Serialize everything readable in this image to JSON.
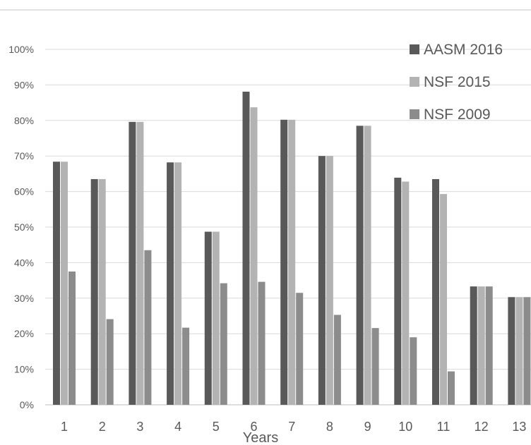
{
  "chart_data": {
    "type": "bar",
    "title": "",
    "xlabel": "Years",
    "ylabel": "",
    "ylim": [
      0,
      100
    ],
    "y_ticks": [
      "0%",
      "10%",
      "20%",
      "30%",
      "40%",
      "50%",
      "60%",
      "70%",
      "80%",
      "90%",
      "100%"
    ],
    "categories": [
      "1",
      "2",
      "3",
      "4",
      "5",
      "6",
      "7",
      "8",
      "9",
      "10",
      "11",
      "12",
      "13"
    ],
    "grid": true,
    "legend_position": "top-right",
    "series": [
      {
        "name": "AASM 2016",
        "color": "#595959",
        "values": [
          68.4,
          63.5,
          79.6,
          68.2,
          48.7,
          88.1,
          80.2,
          70.0,
          78.5,
          63.9,
          63.5,
          33.3,
          30.3
        ]
      },
      {
        "name": "NSF 2015",
        "color": "#b3b3b3",
        "values": [
          68.4,
          63.5,
          79.6,
          68.2,
          48.7,
          83.7,
          80.2,
          70.0,
          78.5,
          62.8,
          59.3,
          33.3,
          30.3
        ]
      },
      {
        "name": "NSF 2009",
        "color": "#8c8c8c",
        "values": [
          37.5,
          24.1,
          43.5,
          21.7,
          34.2,
          34.6,
          31.5,
          25.3,
          21.6,
          19.0,
          9.4,
          33.3,
          30.3
        ]
      }
    ]
  }
}
